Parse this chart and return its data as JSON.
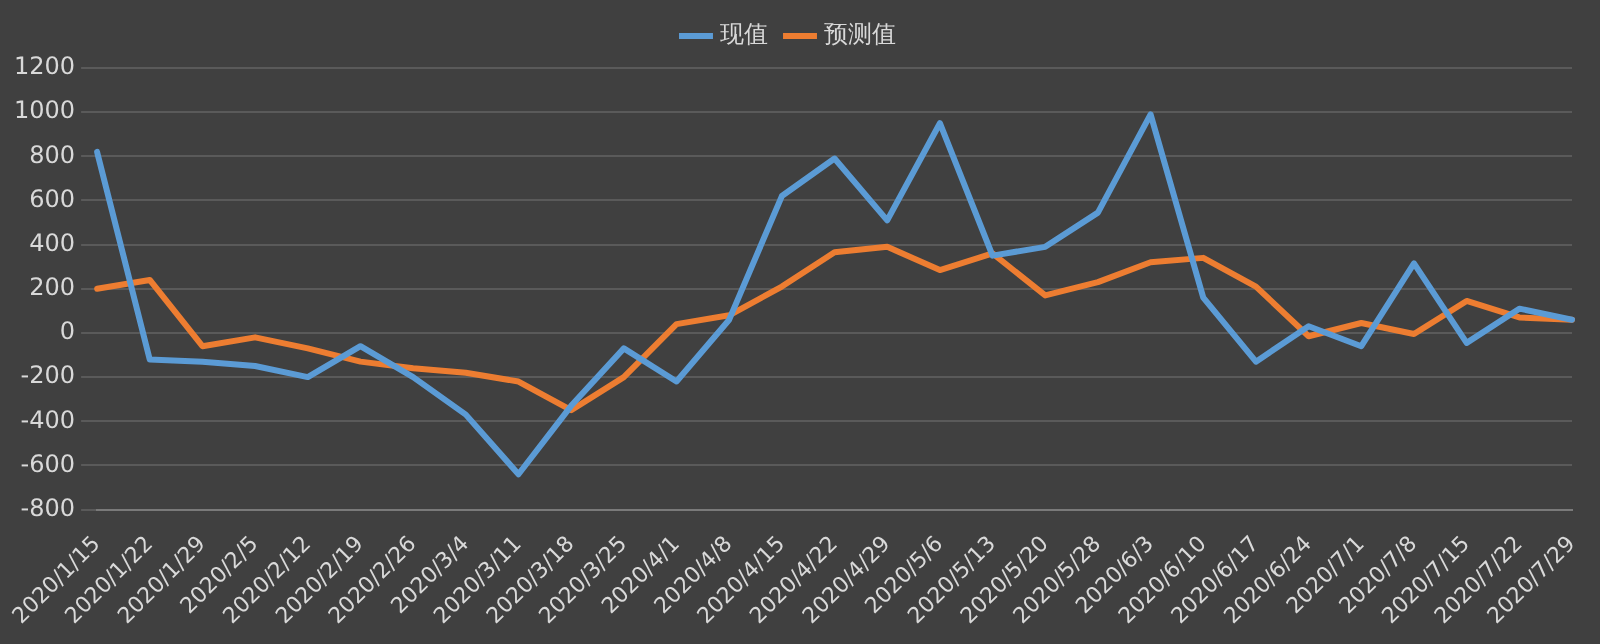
{
  "chart_data": {
    "type": "line",
    "categories": [
      "2020/1/15",
      "2020/1/22",
      "2020/1/29",
      "2020/2/5",
      "2020/2/12",
      "2020/2/19",
      "2020/2/26",
      "2020/3/4",
      "2020/3/11",
      "2020/3/18",
      "2020/3/25",
      "2020/4/1",
      "2020/4/8",
      "2020/4/15",
      "2020/4/22",
      "2020/4/29",
      "2020/5/6",
      "2020/5/13",
      "2020/5/20",
      "2020/5/28",
      "2020/6/3",
      "2020/6/10",
      "2020/6/17",
      "2020/6/24",
      "2020/7/1",
      "2020/7/8",
      "2020/7/15",
      "2020/7/22",
      "2020/7/29"
    ],
    "series": [
      {
        "name": "现值",
        "color": "#5b9bd5",
        "values": [
          820,
          -120,
          -130,
          -150,
          -200,
          -60,
          -200,
          -370,
          -640,
          -330,
          -70,
          -220,
          60,
          620,
          790,
          510,
          950,
          350,
          390,
          545,
          990,
          160,
          -130,
          30,
          -60,
          315,
          -45,
          110,
          60
        ]
      },
      {
        "name": "预测值",
        "color": "#ed7d31",
        "values": [
          200,
          240,
          -60,
          -20,
          -70,
          -130,
          -160,
          -180,
          -220,
          -350,
          -200,
          40,
          80,
          210,
          365,
          390,
          285,
          360,
          170,
          230,
          320,
          340,
          210,
          -15,
          45,
          -5,
          145,
          70,
          60
        ]
      }
    ],
    "ylim": [
      -800,
      1200
    ],
    "yticks": [
      -800,
      -600,
      -400,
      -200,
      0,
      200,
      400,
      600,
      800,
      1000,
      1200
    ],
    "grid": "y",
    "legend": "top",
    "marker": "none",
    "line_style": "solid"
  }
}
